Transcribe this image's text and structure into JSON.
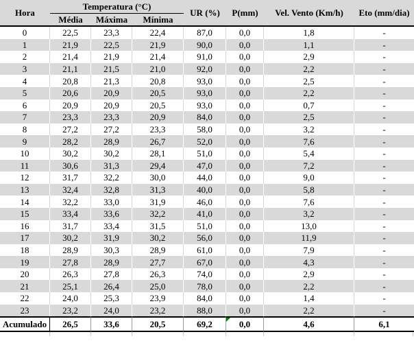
{
  "table": {
    "col_keys": [
      "hora",
      "media",
      "maxima",
      "minima",
      "ur",
      "p",
      "vento",
      "eto"
    ],
    "header": {
      "hora": "Hora",
      "temperatura_group": "Temperatura (°C)",
      "media": "Média",
      "maxima": "Máxima",
      "minima": "Mínima",
      "ur": "UR (%)",
      "p": "P(mm)",
      "vento": "Vel. Vento (Km/h)",
      "eto": "Eto (mm/dia)"
    },
    "rows": [
      [
        "0",
        "22,5",
        "23,3",
        "22,4",
        "87,0",
        "0,0",
        "1,8",
        "-"
      ],
      [
        "1",
        "21,9",
        "22,5",
        "21,9",
        "90,0",
        "0,0",
        "1,1",
        "-"
      ],
      [
        "2",
        "21,4",
        "21,9",
        "21,4",
        "91,0",
        "0,0",
        "2,9",
        "-"
      ],
      [
        "3",
        "21,1",
        "21,5",
        "21,0",
        "92,0",
        "0,0",
        "2,2",
        "-"
      ],
      [
        "4",
        "20,8",
        "21,3",
        "20,8",
        "93,0",
        "0,0",
        "2,5",
        "-"
      ],
      [
        "5",
        "20,6",
        "20,9",
        "20,5",
        "93,0",
        "0,0",
        "2,2",
        "-"
      ],
      [
        "6",
        "20,9",
        "20,9",
        "20,5",
        "93,0",
        "0,0",
        "0,7",
        "-"
      ],
      [
        "7",
        "23,3",
        "23,3",
        "20,9",
        "84,0",
        "0,0",
        "2,5",
        "-"
      ],
      [
        "8",
        "27,2",
        "27,2",
        "23,3",
        "58,0",
        "0,0",
        "3,2",
        "-"
      ],
      [
        "9",
        "28,2",
        "28,9",
        "26,7",
        "52,0",
        "0,0",
        "7,6",
        "-"
      ],
      [
        "10",
        "30,2",
        "30,2",
        "28,1",
        "51,0",
        "0,0",
        "5,4",
        "-"
      ],
      [
        "11",
        "30,6",
        "31,3",
        "29,4",
        "47,0",
        "0,0",
        "7,2",
        "-"
      ],
      [
        "12",
        "31,7",
        "32,2",
        "30,0",
        "44,0",
        "0,0",
        "9,0",
        "-"
      ],
      [
        "13",
        "32,4",
        "32,8",
        "31,3",
        "40,0",
        "0,0",
        "5,8",
        "-"
      ],
      [
        "14",
        "32,2",
        "33,0",
        "31,9",
        "46,0",
        "0,0",
        "7,6",
        "-"
      ],
      [
        "15",
        "33,4",
        "33,6",
        "32,2",
        "41,0",
        "0,0",
        "3,2",
        "-"
      ],
      [
        "16",
        "31,7",
        "33,4",
        "31,5",
        "51,0",
        "0,0",
        "13,0",
        "-"
      ],
      [
        "17",
        "30,2",
        "31,9",
        "30,2",
        "56,0",
        "0,0",
        "11,9",
        "-"
      ],
      [
        "18",
        "28,9",
        "30,3",
        "28,9",
        "61,0",
        "0,0",
        "7,9",
        "-"
      ],
      [
        "19",
        "27,8",
        "28,9",
        "27,7",
        "67,0",
        "0,0",
        "4,3",
        "-"
      ],
      [
        "20",
        "26,3",
        "27,8",
        "26,3",
        "74,0",
        "0,0",
        "2,9",
        "-"
      ],
      [
        "21",
        "25,1",
        "26,4",
        "25,0",
        "78,0",
        "0,0",
        "2,2",
        "-"
      ],
      [
        "22",
        "24,0",
        "25,3",
        "23,9",
        "84,0",
        "0,0",
        "1,4",
        "-"
      ],
      [
        "23",
        "23,2",
        "24,0",
        "23,2",
        "88,0",
        "0,0",
        "2,2",
        "-"
      ]
    ],
    "totals": {
      "label": "Acumulado",
      "values": [
        "26,5",
        "33,6",
        "20,5",
        "69,2",
        "0,0",
        "4,6",
        "6,1"
      ],
      "flag_icon": "green-corner-triangle",
      "flag_cell_column": "p"
    },
    "colors": {
      "band_grey": "#d9d9d9",
      "header_grey": "#d9d9d9",
      "rule_black": "#000000",
      "gridline_on_white": "#d4d4d4",
      "gridline_on_grey": "#ffffff",
      "flag_green": "#008000"
    }
  }
}
